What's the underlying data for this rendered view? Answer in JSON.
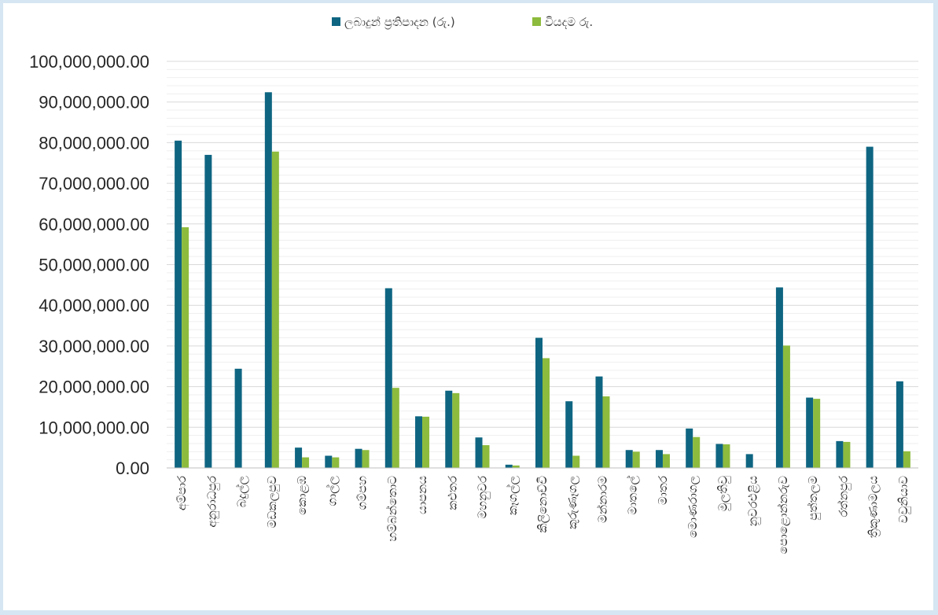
{
  "chart_data": {
    "type": "bar",
    "title": "",
    "xlabel": "",
    "ylabel": "",
    "ylim": [
      0,
      100000000
    ],
    "y_major_step": 10000000,
    "y_minor_step": 2000000,
    "grid": true,
    "legend_position": "top-center",
    "yticks": [
      "0.00",
      "10,000,000.00",
      "20,000,000.00",
      "30,000,000.00",
      "40,000,000.00",
      "50,000,000.00",
      "60,000,000.00",
      "70,000,000.00",
      "80,000,000.00",
      "90,000,000.00",
      "100,000,000.00"
    ],
    "categories": [
      "අම්පාර",
      "අනුරාධපුර",
      "බදුල්ල",
      "මඩකලපුව",
      "කොළඹ",
      "ගාල්ල",
      "ගම්පහ",
      "හම්බන්තොට",
      "යාපනය",
      "කළුතර",
      "මහනුවර",
      "කෑගල්ල",
      "කිලිනොච්චි",
      "කුරුණෑගල",
      "මන්නාරම",
      "මාතලේ",
      "මාතර",
      "මොණරාගල",
      "මුලතිවු",
      "නුවරඑළිය",
      "පොළොන්නරුව",
      "පුත්තලම",
      "රත්නපුර",
      "ත්‍රිකුණාමලය",
      "වවුනියාව"
    ],
    "series": [
      {
        "name": "ලබාදුන් ප්‍රතිපාදන (රු.)",
        "color": "#0e6582",
        "values": [
          80500000,
          77000000,
          24400000,
          92400000,
          5000000,
          3000000,
          4700000,
          44200000,
          12700000,
          19000000,
          7500000,
          800000,
          32000000,
          16400000,
          22500000,
          4400000,
          4400000,
          9700000,
          5900000,
          3400000,
          44400000,
          17300000,
          6600000,
          79000000,
          21300000
        ]
      },
      {
        "name": "වියදම රු.",
        "color": "#8dbb3d",
        "values": [
          59200000,
          0,
          0,
          77800000,
          2600000,
          2600000,
          4400000,
          19700000,
          12600000,
          18400000,
          5600000,
          600000,
          27000000,
          3000000,
          17600000,
          4000000,
          3400000,
          7600000,
          5800000,
          0,
          30100000,
          17000000,
          6400000,
          0,
          4100000
        ]
      }
    ]
  }
}
